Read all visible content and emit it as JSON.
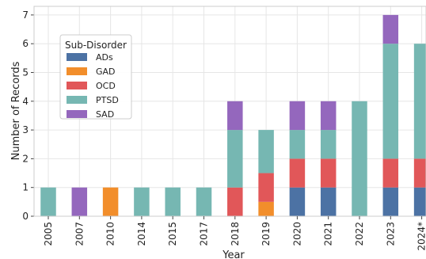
{
  "chart_data": {
    "type": "bar",
    "stacked": true,
    "title": "",
    "xlabel": "Year",
    "ylabel": "Number of Records",
    "ylim": [
      0,
      7.3
    ],
    "yticks": [
      0,
      1,
      2,
      3,
      4,
      5,
      6,
      7
    ],
    "grid": true,
    "legend_title": "Sub-Disorder",
    "legend_position": "upper-left",
    "categories": [
      "2005",
      "2007",
      "2010",
      "2014",
      "2015",
      "2017",
      "2018",
      "2019",
      "2020",
      "2021",
      "2022",
      "2023",
      "2024*"
    ],
    "series": [
      {
        "name": "ADs",
        "color": "#4c72a4",
        "values": [
          0,
          0,
          0,
          0,
          0,
          0,
          0,
          0,
          1,
          1,
          0,
          1,
          1
        ]
      },
      {
        "name": "GAD",
        "color": "#f28e2b",
        "values": [
          0,
          0,
          1,
          0,
          0,
          0,
          0,
          0.5,
          0,
          0,
          0,
          0,
          0
        ]
      },
      {
        "name": "OCD",
        "color": "#e15759",
        "values": [
          0,
          0,
          0,
          0,
          0,
          0,
          1,
          1,
          1,
          1,
          0,
          1,
          1
        ]
      },
      {
        "name": "PTSD",
        "color": "#76b7b2",
        "values": [
          1,
          0,
          0,
          1,
          1,
          1,
          2,
          1.5,
          1,
          1,
          4,
          4,
          4
        ]
      },
      {
        "name": "SAD",
        "color": "#9467bd",
        "values": [
          0,
          1,
          0,
          0,
          0,
          0,
          1,
          0,
          1,
          1,
          0,
          1,
          0
        ]
      }
    ]
  }
}
